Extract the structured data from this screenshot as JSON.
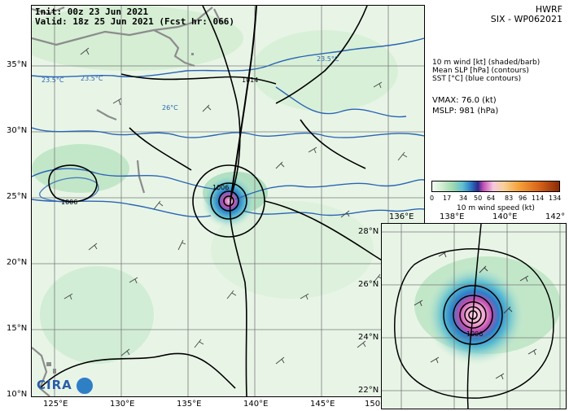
{
  "header": {
    "init": "Init:   00z 23 Jun 2021",
    "valid": "Valid: 18z 25 Jun 2021 (Fcst hr: 066)",
    "model": "HWRF",
    "storm": "SIX - WP062021"
  },
  "legend_text": {
    "line1": "10 m wind [kt] (shaded/barb)",
    "line2": "Mean SLP [hPa] (contours)",
    "line3": "SST [°C] (blue contours)",
    "vmax": "VMAX:  76.0 (kt)",
    "mslp": "MSLP:  981 (hPa)"
  },
  "colorbar": {
    "ticks": [
      "0",
      "17",
      "34",
      "50",
      "64",
      "83",
      "96",
      "114",
      "134"
    ],
    "label": "10 m wind speed (kt)",
    "colors": [
      "#f4fbf4",
      "#cfeccf",
      "#9fd9b0",
      "#5fbfd0",
      "#2c7fc8",
      "#2b2b8f",
      "#c04bb0",
      "#f7c6e0",
      "#f6a23a",
      "#d8641a",
      "#8a2a05"
    ]
  },
  "main_map": {
    "lat_labels": [
      "35°N",
      "30°N",
      "25°N",
      "20°N",
      "15°N",
      "10°N"
    ],
    "lon_labels": [
      "125°E",
      "130°E",
      "135°E",
      "140°E",
      "145°E",
      "150°"
    ],
    "slp_labels": [
      "1014",
      "1006",
      "1006"
    ],
    "sst_labels": [
      "23.5°C",
      "23.5°C",
      "23.5°C",
      "26°C"
    ],
    "land_color": "#8c8c8c",
    "sst_color": "#2a64b4"
  },
  "inset_map": {
    "lat_labels": [
      "28°N",
      "26°N",
      "24°N",
      "22°N"
    ],
    "lon_labels_top": [
      "136°E",
      "138°E",
      "140°E",
      "142°"
    ],
    "slp_label": "1006"
  },
  "logo": {
    "text": "CIRA"
  }
}
